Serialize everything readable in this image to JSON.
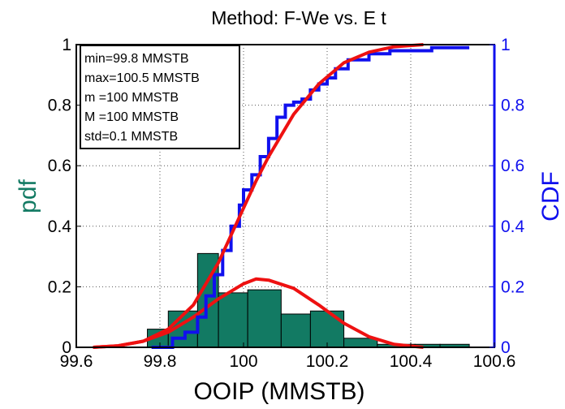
{
  "chart_data": {
    "type": "histogram",
    "title": "Method: F-We vs. E t",
    "xlabel": "OOIP (MMSTB)",
    "ylabel_left": "pdf",
    "ylabel_right": "CDF",
    "xlim": [
      99.6,
      100.6
    ],
    "ylim_left": [
      0,
      1
    ],
    "ylim_right": [
      0,
      1
    ],
    "x_ticks": [
      "99.6",
      "99.8",
      "100",
      "100.2",
      "100.4",
      "100.6"
    ],
    "y_ticks_left": [
      "0",
      "0.2",
      "0.4",
      "0.6",
      "0.8",
      "1"
    ],
    "y_ticks_right": [
      "0",
      "0.2",
      "0.4",
      "0.6",
      "0.8",
      "1"
    ],
    "grid": true,
    "colors": {
      "histogram": "#127a63",
      "cdf_empirical": "#1010ee",
      "fitted": "#ee1111",
      "pdf_axis": "#127a63",
      "cdf_axis": "#1010ee"
    },
    "histogram": {
      "bin_edges": [
        99.77,
        99.82,
        99.89,
        99.94,
        100.01,
        100.09,
        100.16,
        100.24,
        100.32,
        100.41,
        100.47,
        100.54
      ],
      "pdf_values": [
        0.06,
        0.12,
        0.31,
        0.18,
        0.19,
        0.11,
        0.12,
        0.03,
        0.01,
        0.01,
        0.01
      ]
    },
    "fitted_pdf": {
      "x": [
        99.64,
        99.7,
        99.76,
        99.82,
        99.88,
        99.94,
        100.0,
        100.03,
        100.06,
        100.12,
        100.18,
        100.24,
        100.3,
        100.36,
        100.43
      ],
      "y": [
        0.0,
        0.005,
        0.02,
        0.05,
        0.1,
        0.16,
        0.21,
        0.226,
        0.222,
        0.195,
        0.14,
        0.08,
        0.035,
        0.01,
        0.0
      ]
    },
    "fitted_cdf": {
      "x": [
        99.64,
        99.7,
        99.76,
        99.82,
        99.88,
        99.94,
        100.0,
        100.03,
        100.06,
        100.12,
        100.18,
        100.24,
        100.3,
        100.36,
        100.43
      ],
      "y": [
        0.0,
        0.005,
        0.02,
        0.06,
        0.14,
        0.28,
        0.46,
        0.55,
        0.63,
        0.77,
        0.87,
        0.94,
        0.975,
        0.993,
        1.0
      ]
    },
    "empirical_cdf": {
      "x": [
        99.78,
        99.83,
        99.86,
        99.89,
        99.91,
        99.93,
        99.95,
        99.97,
        99.99,
        100.0,
        100.02,
        100.04,
        100.06,
        100.08,
        100.1,
        100.12,
        100.14,
        100.16,
        100.18,
        100.2,
        100.22,
        100.25,
        100.3,
        100.35,
        100.4,
        100.45,
        100.5,
        100.54
      ],
      "y": [
        0.0,
        0.03,
        0.05,
        0.1,
        0.17,
        0.24,
        0.32,
        0.4,
        0.47,
        0.52,
        0.57,
        0.63,
        0.69,
        0.76,
        0.8,
        0.81,
        0.82,
        0.85,
        0.87,
        0.89,
        0.92,
        0.95,
        0.97,
        0.98,
        0.98,
        0.99,
        0.99,
        0.99
      ]
    },
    "stats": [
      "min=99.8 MMSTB",
      "max=100.5 MMSTB",
      "m  =100 MMSTB",
      "M  =100 MMSTB",
      "std=0.1 MMSTB"
    ]
  }
}
